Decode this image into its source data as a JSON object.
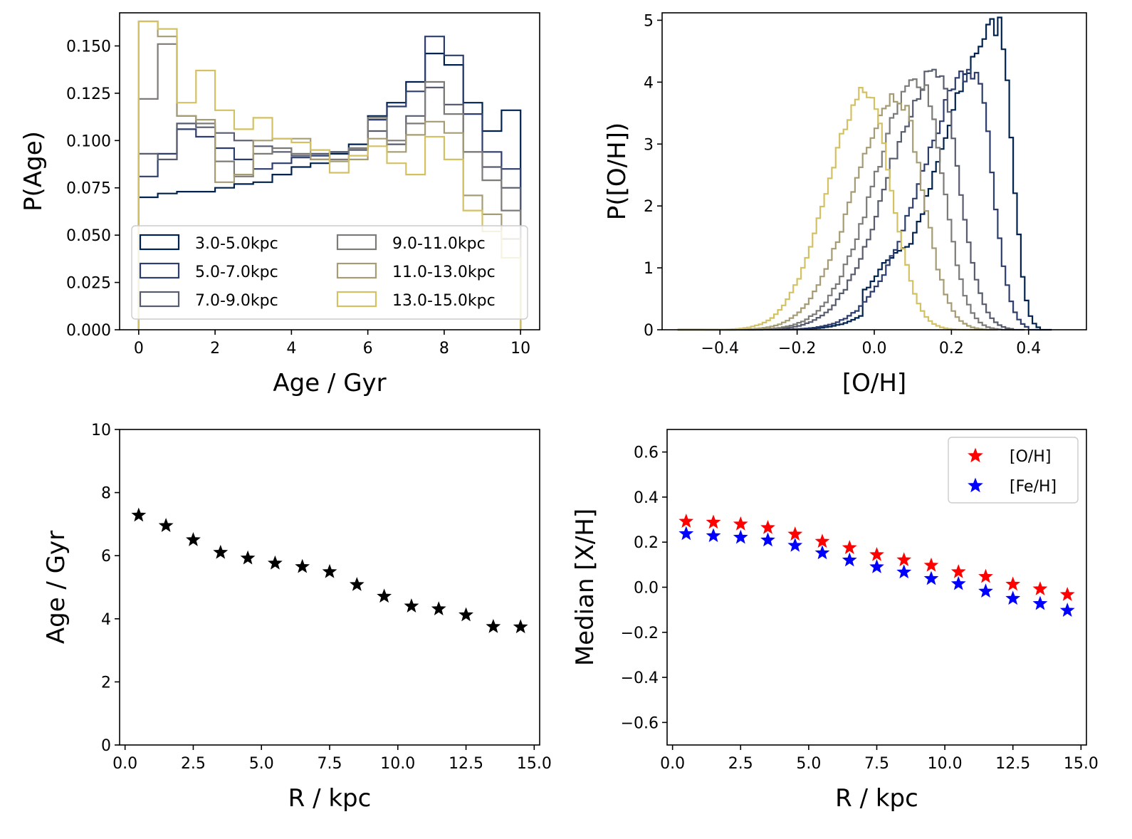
{
  "chart_data": [
    {
      "type": "histogram",
      "xlabel": "Age / Gyr",
      "ylabel": "P(Age)",
      "xlim": [
        -0.5,
        10.5
      ],
      "ylim": [
        0,
        0.1675
      ],
      "xticks": [
        0,
        2,
        4,
        6,
        8,
        10
      ],
      "xtick_labels": [
        "0",
        "2",
        "4",
        "6",
        "8",
        "10"
      ],
      "yticks": [
        0,
        0.025,
        0.05,
        0.075,
        0.1,
        0.125,
        0.15
      ],
      "ytick_labels": [
        "0.000",
        "0.025",
        "0.050",
        "0.075",
        "0.100",
        "0.125",
        "0.150"
      ],
      "legend": "lower-center",
      "legend_ncol": 2,
      "bin_edges": [
        0,
        0.5,
        1,
        1.5,
        2,
        2.5,
        3,
        3.5,
        4,
        4.5,
        5,
        5.5,
        6,
        6.5,
        7,
        7.5,
        8,
        8.5,
        9,
        9.5,
        10
      ],
      "series": [
        {
          "name": "3.0-5.0kpc",
          "color": "#00224e",
          "values": [
            0.07,
            0.072,
            0.073,
            0.073,
            0.075,
            0.077,
            0.078,
            0.082,
            0.086,
            0.088,
            0.093,
            0.098,
            0.113,
            0.12,
            0.131,
            0.146,
            0.14,
            0.12,
            0.105,
            0.116
          ]
        },
        {
          "name": "5.0-7.0kpc",
          "color": "#2d3e6e",
          "values": [
            0.081,
            0.093,
            0.106,
            0.102,
            0.096,
            0.09,
            0.085,
            0.088,
            0.091,
            0.092,
            0.094,
            0.096,
            0.111,
            0.118,
            0.126,
            0.155,
            0.145,
            0.114,
            0.094,
            0.085
          ]
        },
        {
          "name": "7.0-9.0kpc",
          "color": "#575c6e",
          "values": [
            0.093,
            0.09,
            0.109,
            0.107,
            0.104,
            0.1,
            0.097,
            0.094,
            0.092,
            0.093,
            0.094,
            0.095,
            0.105,
            0.098,
            0.113,
            0.128,
            0.119,
            0.094,
            0.086,
            0.075
          ]
        },
        {
          "name": "9.0-11.0kpc",
          "color": "#7c7b78",
          "values": [
            0.122,
            0.151,
            0.113,
            0.109,
            0.089,
            0.081,
            0.093,
            0.096,
            0.093,
            0.09,
            0.09,
            0.096,
            0.112,
            0.1,
            0.109,
            0.131,
            0.114,
            0.094,
            0.079,
            0.063
          ]
        },
        {
          "name": "11.0-13.0kpc",
          "color": "#a59c74",
          "values": [
            0.163,
            0.155,
            0.113,
            0.111,
            0.078,
            0.082,
            0.1,
            0.101,
            0.101,
            0.09,
            0.089,
            0.09,
            0.101,
            0.094,
            0.103,
            0.11,
            0.104,
            0.071,
            0.061,
            0.048
          ]
        },
        {
          "name": "13.0-15.0kpc",
          "color": "#d3c164",
          "values": [
            0.163,
            0.159,
            0.12,
            0.137,
            0.116,
            0.106,
            0.112,
            0.101,
            0.099,
            0.095,
            0.083,
            0.092,
            0.097,
            0.088,
            0.082,
            0.102,
            0.09,
            0.063,
            0.052,
            0.038
          ]
        }
      ]
    },
    {
      "type": "histogram",
      "xlabel": "[O/H]",
      "ylabel": "P([O/H])",
      "xlim": [
        -0.55,
        0.55
      ],
      "ylim": [
        0,
        5.12
      ],
      "xticks": [
        -0.4,
        -0.2,
        0.0,
        0.2,
        0.4
      ],
      "xtick_labels": [
        "−0.4",
        "−0.2",
        "0.0",
        "0.2",
        "0.4"
      ],
      "yticks": [
        0,
        1,
        2,
        3,
        4,
        5
      ],
      "ytick_labels": [
        "0",
        "1",
        "2",
        "3",
        "4",
        "5"
      ],
      "curve_shape": "asymmetric peak with a slow left tail and a steep right edge; columns are [peak position, peak height, right edge position, left tail width, right fall width]",
      "series_curves": [
        {
          "name": "3.0-5.0kpc",
          "color": "#00224e",
          "peak": 0.325,
          "height": 4.92,
          "right_edge": 0.43,
          "left_width": 0.26,
          "right_width": 0.05,
          "shoulder_x": 0.09,
          "shoulder_height": 1.2
        },
        {
          "name": "5.0-7.0kpc",
          "color": "#2d3e6e",
          "peak": 0.26,
          "height": 4.18,
          "right_edge": 0.4,
          "left_width": 0.24,
          "right_width": 0.07
        },
        {
          "name": "7.0-9.0kpc",
          "color": "#575c6e",
          "peak": 0.16,
          "height": 4.12,
          "right_edge": 0.36,
          "left_width": 0.22,
          "right_width": 0.09
        },
        {
          "name": "9.0-11.0kpc",
          "color": "#7c7b78",
          "peak": 0.12,
          "height": 4.05,
          "right_edge": 0.33,
          "left_width": 0.21,
          "right_width": 0.09
        },
        {
          "name": "11.0-13.0kpc",
          "color": "#a59c74",
          "peak": 0.06,
          "height": 3.8,
          "right_edge": 0.29,
          "left_width": 0.2,
          "right_width": 0.1
        },
        {
          "name": "13.0-15.0kpc",
          "color": "#d3c164",
          "peak": -0.02,
          "height": 3.82,
          "right_edge": 0.26,
          "left_width": 0.18,
          "right_width": 0.1
        }
      ]
    },
    {
      "type": "scatter",
      "xlabel": "R / kpc",
      "ylabel": "Age / Gyr",
      "xlim": [
        -0.2,
        15.2
      ],
      "ylim": [
        0,
        10
      ],
      "xticks": [
        0,
        2.5,
        5,
        7.5,
        10,
        12.5,
        15
      ],
      "xtick_labels": [
        "0.0",
        "2.5",
        "5.0",
        "7.5",
        "10.0",
        "12.5",
        "15.0"
      ],
      "yticks": [
        0,
        2,
        4,
        6,
        8,
        10
      ],
      "ytick_labels": [
        "0",
        "2",
        "4",
        "6",
        "8",
        "10"
      ],
      "marker": "star",
      "series": [
        {
          "color": "#000000",
          "x": [
            0.5,
            1.5,
            2.5,
            3.5,
            4.5,
            5.5,
            6.5,
            7.5,
            8.5,
            9.5,
            10.5,
            11.5,
            12.5,
            13.5,
            14.5
          ],
          "y": [
            7.28,
            6.95,
            6.5,
            6.1,
            5.92,
            5.76,
            5.65,
            5.49,
            5.08,
            4.71,
            4.4,
            4.31,
            4.12,
            3.75,
            3.74
          ]
        }
      ]
    },
    {
      "type": "scatter",
      "xlabel": "R / kpc",
      "ylabel": "Median [X/H]",
      "xlim": [
        -0.2,
        15.2
      ],
      "ylim": [
        -0.7,
        0.7
      ],
      "xticks": [
        0,
        2.5,
        5,
        7.5,
        10,
        12.5,
        15
      ],
      "xtick_labels": [
        "0.0",
        "2.5",
        "5.0",
        "7.5",
        "10.0",
        "12.5",
        "15.0"
      ],
      "yticks": [
        -0.6,
        -0.4,
        -0.2,
        0.0,
        0.2,
        0.4,
        0.6
      ],
      "ytick_labels": [
        "−0.6",
        "−0.4",
        "−0.2",
        "0.0",
        "0.2",
        "0.4",
        "0.6"
      ],
      "marker": "star",
      "legend": "top-right",
      "series": [
        {
          "name": "[O/H]",
          "color": "#ff0000",
          "x": [
            0.5,
            1.5,
            2.5,
            3.5,
            4.5,
            5.5,
            6.5,
            7.5,
            8.5,
            9.5,
            10.5,
            11.5,
            12.5,
            13.5,
            14.5
          ],
          "y": [
            0.292,
            0.288,
            0.28,
            0.264,
            0.235,
            0.203,
            0.175,
            0.144,
            0.121,
            0.097,
            0.068,
            0.047,
            0.013,
            -0.008,
            -0.033
          ]
        },
        {
          "name": "[Fe/H]",
          "color": "#0000ff",
          "x": [
            0.5,
            1.5,
            2.5,
            3.5,
            4.5,
            5.5,
            6.5,
            7.5,
            8.5,
            9.5,
            10.5,
            11.5,
            12.5,
            13.5,
            14.5
          ],
          "y": [
            0.237,
            0.228,
            0.221,
            0.209,
            0.185,
            0.152,
            0.12,
            0.09,
            0.067,
            0.038,
            0.015,
            -0.018,
            -0.05,
            -0.073,
            -0.103
          ]
        }
      ]
    }
  ]
}
